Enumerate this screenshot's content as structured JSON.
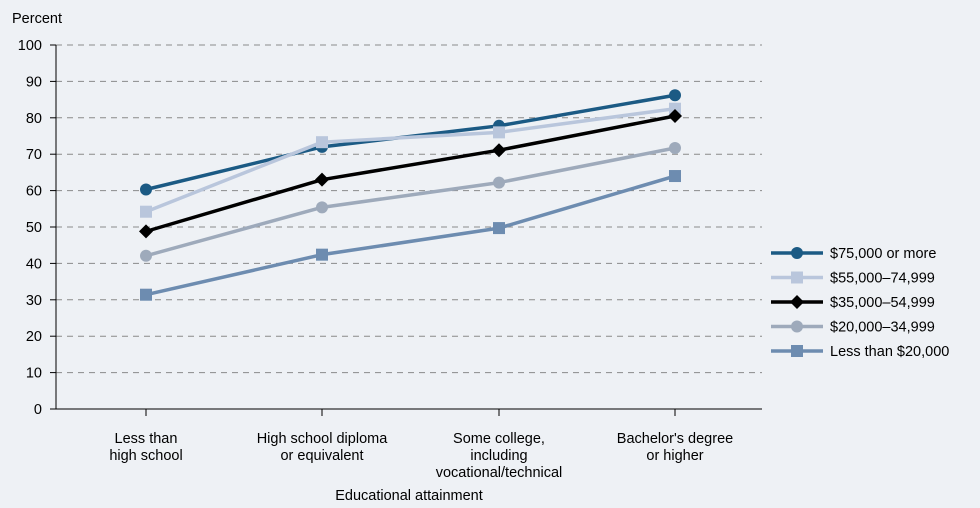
{
  "chart_data": {
    "type": "line",
    "ylabel": "Percent",
    "xlabel": "Educational attainment",
    "ylim": [
      0,
      100
    ],
    "yticks": [
      0,
      10,
      20,
      30,
      40,
      50,
      60,
      70,
      80,
      90,
      100
    ],
    "grid": "horizontal-dashed",
    "legend_position": "right",
    "categories": [
      [
        "Less than",
        "high school"
      ],
      [
        "High school diploma",
        "or equivalent"
      ],
      [
        "Some college,",
        "including",
        "vocational/technical"
      ],
      [
        "Bachelor's degree",
        "or higher"
      ]
    ],
    "series": [
      {
        "name": "$75,000 or more",
        "color": "#1b5a84",
        "marker": "circle",
        "values": [
          60.3,
          72.0,
          77.8,
          86.2
        ]
      },
      {
        "name": "$55,000–74,999",
        "color": "#b9c6dc",
        "marker": "square",
        "values": [
          54.2,
          73.3,
          76.0,
          82.5
        ]
      },
      {
        "name": "$35,000–54,999",
        "color": "#000000",
        "marker": "diamond",
        "values": [
          48.8,
          63.0,
          71.1,
          80.5
        ]
      },
      {
        "name": "$20,000–34,999",
        "color": "#9eaabb",
        "marker": "circle",
        "values": [
          42.1,
          55.4,
          62.2,
          71.7
        ]
      },
      {
        "name": "Less than $20,000",
        "color": "#6d8cb0",
        "marker": "square",
        "values": [
          31.4,
          42.4,
          49.7,
          64.0
        ]
      }
    ]
  }
}
